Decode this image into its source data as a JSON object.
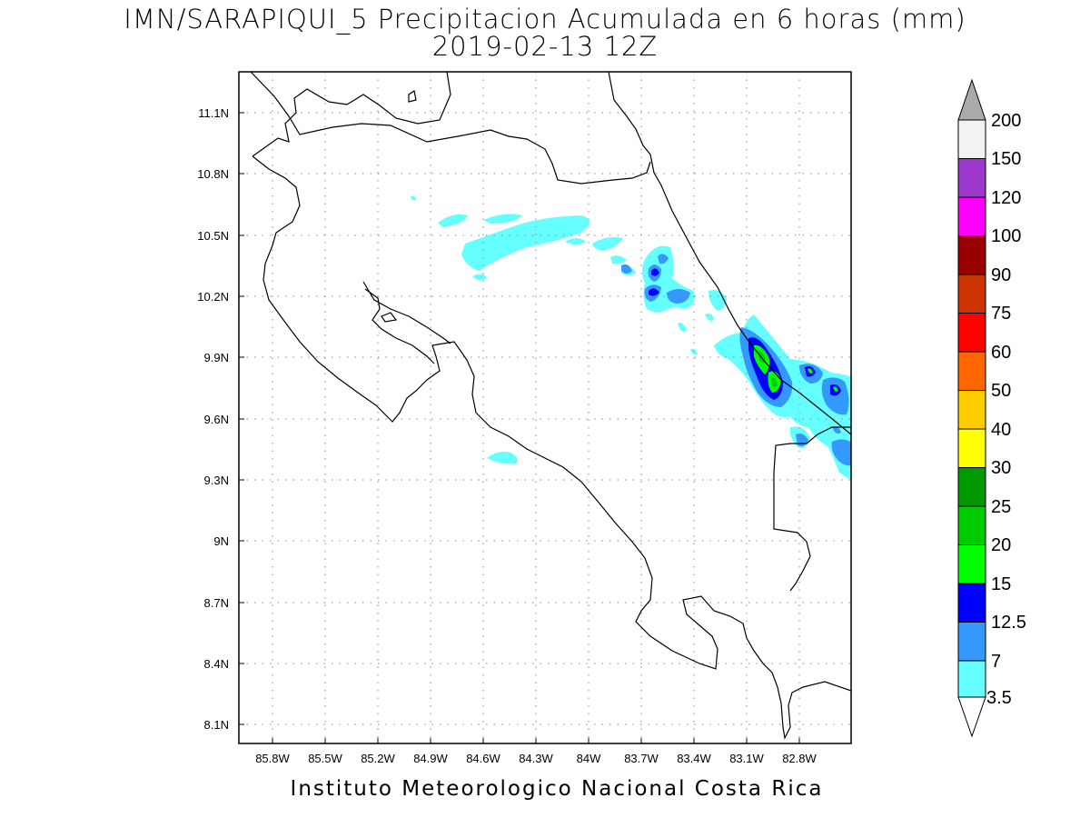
{
  "title": {
    "line1": "IMN/SARAPIQUI_5 Precipitacion Acumulada en 6 horas (mm)",
    "line2": "2019-02-13 12Z"
  },
  "footer": "Instituto Meteorologico Nacional Costa Rica",
  "map": {
    "lon_range": [
      -86.1,
      -83.0
    ],
    "lat_range": [
      8.0,
      11.3
    ],
    "lon_ticks": [
      "85.8W",
      "85.5W",
      "85.2W",
      "84.9W",
      "84.6W",
      "84.3W",
      "84W",
      "83.7W",
      "83.4W",
      "83.1W",
      "82.8W"
    ],
    "lat_ticks": [
      "11.1N",
      "10.8N",
      "10.5N",
      "10.2N",
      "9.9N",
      "9.6N",
      "9.3N",
      "9N",
      "8.7N",
      "8.4N",
      "8.1N"
    ],
    "grid": true
  },
  "colorbar": {
    "labels": [
      "200",
      "150",
      "120",
      "100",
      "90",
      "75",
      "60",
      "50",
      "40",
      "30",
      "25",
      "20",
      "15",
      "12.5",
      "7",
      "3.5"
    ],
    "colors": [
      "#aaaaaa",
      "#f2f2f2",
      "#9c39cc",
      "#ff00ff",
      "#990000",
      "#cc3300",
      "#ff0000",
      "#ff6600",
      "#ffcc00",
      "#ffff00",
      "#009900",
      "#00cc00",
      "#00ff00",
      "#0000ff",
      "#3399ff",
      "#66ffff",
      "#ffffff"
    ]
  },
  "precip_colors": {
    "c3_5": "#66ffff",
    "c7": "#3399ff",
    "c12_5": "#0000ff",
    "c15": "#00ff00",
    "c20": "#00cc00"
  }
}
